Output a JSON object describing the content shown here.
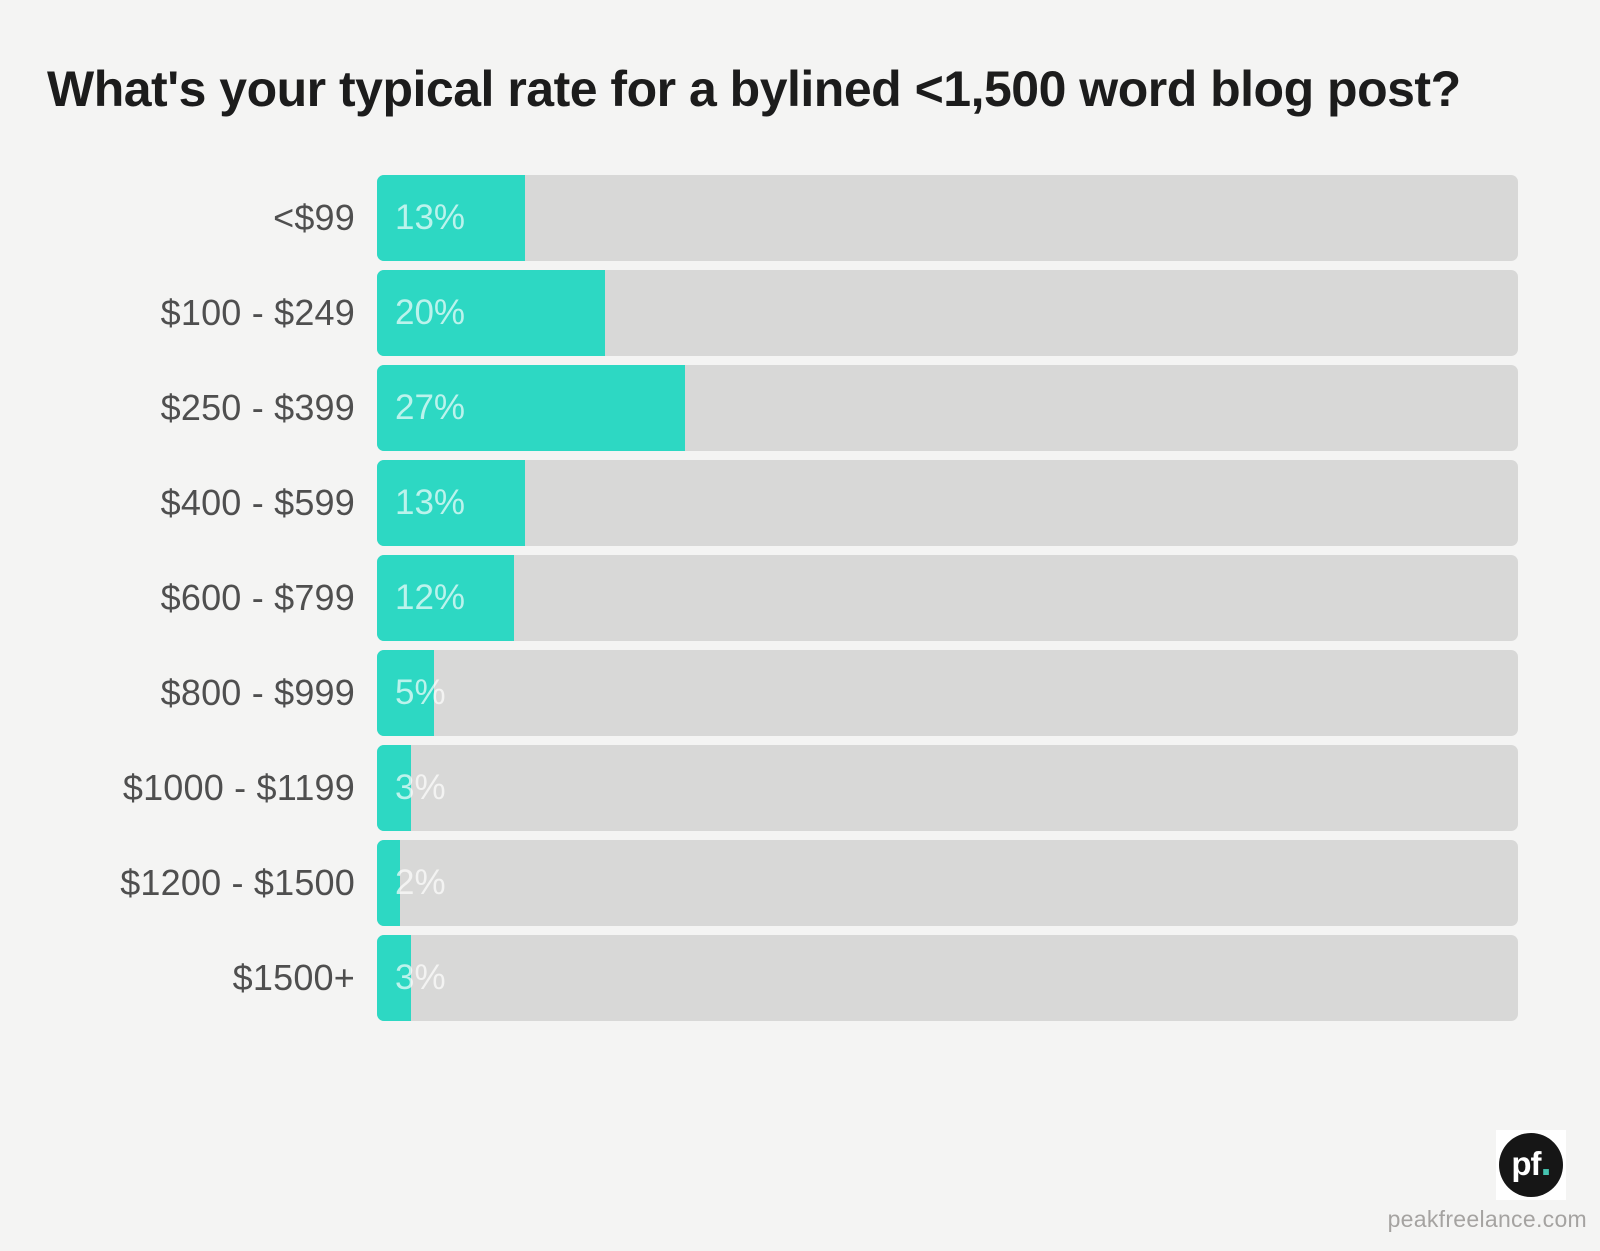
{
  "title": "What's your typical rate for a bylined <1,500 word blog post?",
  "chart_data": {
    "type": "bar",
    "orientation": "horizontal",
    "title": "What's your typical rate for a bylined <1,500 word blog post?",
    "categories": [
      "<$99",
      "$100 - $249",
      "$250 - $399",
      "$400 - $599",
      "$600 - $799",
      "$800 - $999",
      "$1000 - $1199",
      "$1200 - $1500",
      "$1500+"
    ],
    "values": [
      13,
      20,
      27,
      13,
      12,
      5,
      3,
      2,
      3
    ],
    "value_labels": [
      "13%",
      "20%",
      "27%",
      "13%",
      "12%",
      "5%",
      "3%",
      "2%",
      "3%"
    ],
    "unit": "%",
    "xlim": [
      0,
      100
    ],
    "grid": false,
    "legend": false,
    "bar_color": "#2dd8c3",
    "track_color": "#d8d8d7"
  },
  "footer": {
    "logo": {
      "text": "pf",
      "dot": "."
    },
    "website": "peakfreelance.com"
  },
  "colors": {
    "background": "#f4f4f3",
    "accent": "#2dd8c3",
    "track": "#d8d8d7",
    "title_text": "#1c1c1c",
    "category_text": "#4f4f4f",
    "value_text": "rgba(255,255,255,0.68)",
    "url_text": "#a5a3a1",
    "logo_bg": "#161616",
    "logo_dot": "#45c4b0"
  }
}
